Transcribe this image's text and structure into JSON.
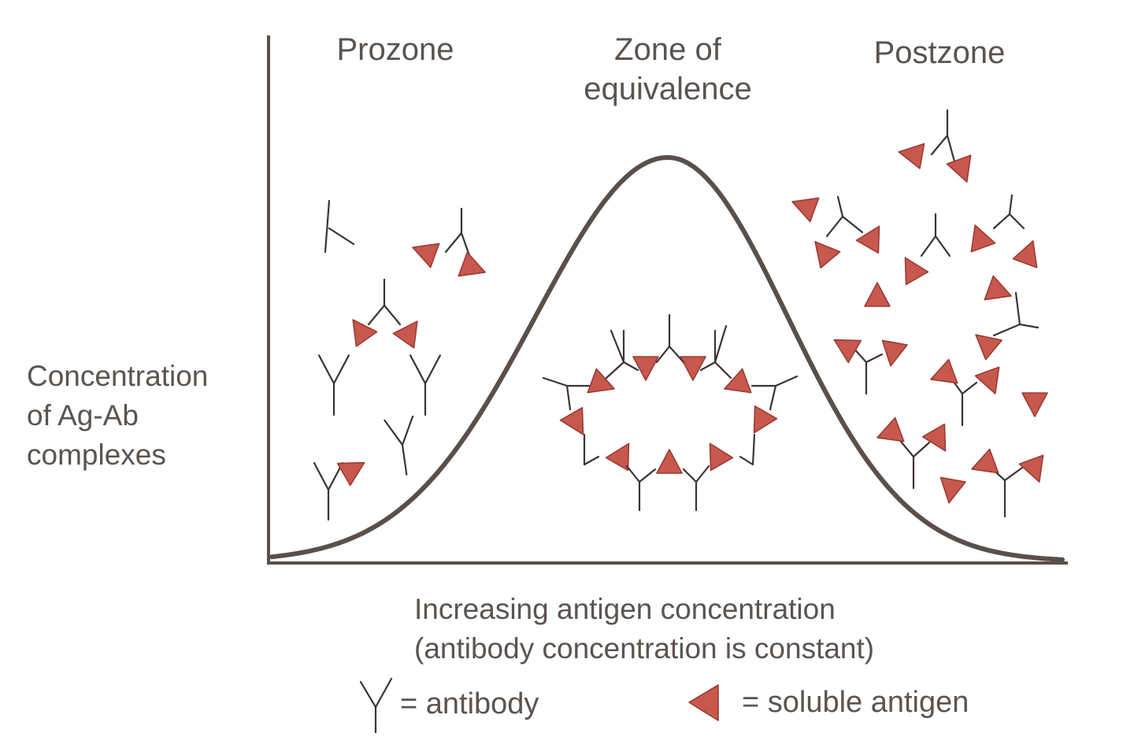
{
  "zones": {
    "prozone": "Prozone",
    "equivalence_line1": "Zone of",
    "equivalence_line2": "equivalence",
    "postzone": "Postzone"
  },
  "y_axis": {
    "line1": "Concentration",
    "line2": "of Ag-Ab",
    "line3": "complexes"
  },
  "x_axis": {
    "line1": "Increasing antigen concentration",
    "line2": "(antibody concentration is constant)"
  },
  "legend": {
    "antibody_label": "= antibody",
    "antigen_label": "= soluble antigen",
    "antibody_icon": "antibody-y-icon",
    "antigen_icon": "antigen-triangle-icon"
  },
  "colors": {
    "antigen": "#c8584e",
    "curve": "#5a4f49",
    "text": "#5a5450"
  }
}
